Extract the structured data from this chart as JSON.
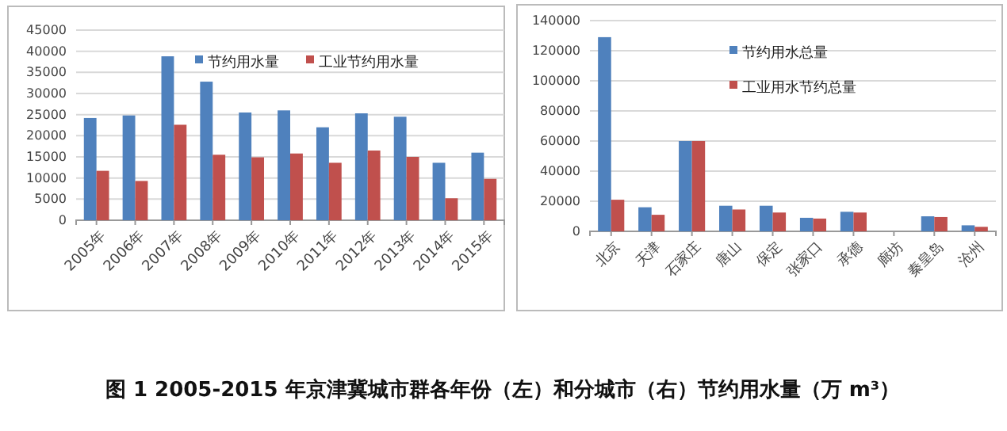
{
  "chart_data": [
    {
      "type": "bar",
      "categories": [
        "2005年",
        "2006年",
        "2007年",
        "2008年",
        "2009年",
        "2010年",
        "2011年",
        "2012年",
        "2013年",
        "2014年",
        "2015年"
      ],
      "series": [
        {
          "name": "节约用水量",
          "color": "#4f81bd",
          "values": [
            24200,
            24800,
            38800,
            32800,
            25500,
            26000,
            22000,
            25300,
            24500,
            13600,
            16000
          ]
        },
        {
          "name": "工业节约用水量",
          "color": "#c0504d",
          "values": [
            11700,
            9300,
            22600,
            15500,
            14900,
            15800,
            13600,
            16500,
            15000,
            5200,
            9800
          ]
        }
      ],
      "ylim": [
        0,
        45000
      ],
      "yticks": [
        0,
        5000,
        10000,
        15000,
        20000,
        25000,
        30000,
        35000,
        40000,
        45000
      ],
      "grid": "y",
      "legend": "top",
      "annotations": [
        "图 1 2005-2015 年京津冀城市群各年份（左）和分城市（右）节约用水量（万 m³）"
      ]
    },
    {
      "type": "bar",
      "categories": [
        "北京",
        "天津",
        "石家庄",
        "唐山",
        "保定",
        "张家口",
        "承德",
        "廊坊",
        "秦皇岛",
        "沧州"
      ],
      "series": [
        {
          "name": "节约用水总量",
          "color": "#4f81bd",
          "values": [
            129000,
            16000,
            60000,
            17000,
            17000,
            9000,
            13000,
            null,
            10000,
            4000
          ]
        },
        {
          "name": "工业用水节约总量",
          "color": "#c0504d",
          "values": [
            21000,
            11000,
            60000,
            14500,
            12500,
            8500,
            12500,
            null,
            9500,
            3000
          ]
        }
      ],
      "ylim": [
        0,
        140000
      ],
      "yticks": [
        0,
        20000,
        40000,
        60000,
        80000,
        100000,
        120000,
        140000
      ],
      "grid": "y",
      "legend": "top"
    }
  ]
}
